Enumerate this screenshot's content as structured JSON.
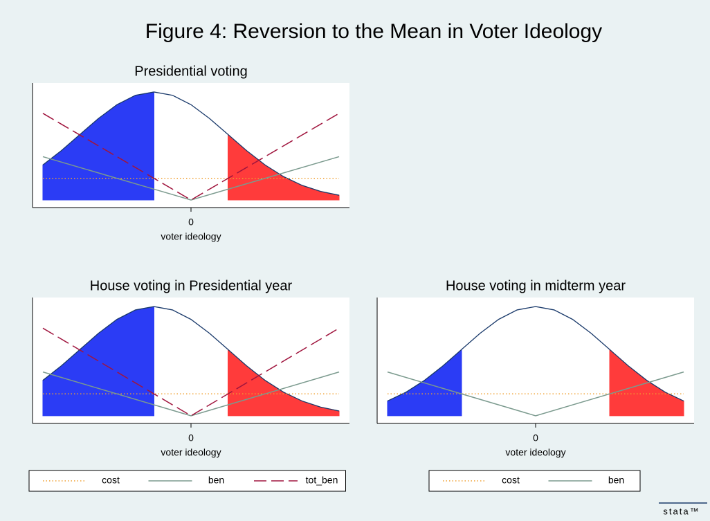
{
  "title": "Figure 4: Reversion to the Mean in Voter Ideology",
  "watermark": "stata™",
  "chart_data": [
    {
      "type": "line",
      "title": "Presidential voting",
      "xlabel": "voter ideology",
      "xlim": [
        -2.14,
        2.14
      ],
      "xticks": [
        0
      ],
      "ylim": [
        -0.028,
        0.432
      ],
      "legend": false,
      "density": {
        "color": "#1a3a6b",
        "x": [
          -2,
          -1.75,
          -1.5,
          -1.25,
          -1,
          -0.75,
          -0.5,
          -0.25,
          0,
          0.25,
          0.5,
          0.75,
          1,
          1.25,
          1.5,
          1.75,
          2
        ],
        "values": [
          0.1295,
          0.1826,
          0.242,
          0.3011,
          0.3521,
          0.3867,
          0.3989,
          0.3867,
          0.3521,
          0.3011,
          0.242,
          0.1826,
          0.1295,
          0.0863,
          0.054,
          0.0317,
          0.0175
        ]
      },
      "areas": [
        {
          "color": "#2b3cf5",
          "x": [
            -2,
            -1.75,
            -1.5,
            -1.25,
            -1,
            -0.75,
            -0.5
          ],
          "values": [
            0.1295,
            0.1826,
            0.242,
            0.3011,
            0.3521,
            0.3867,
            0.3989
          ]
        },
        {
          "color": "#ff3b3b",
          "x": [
            0.5,
            0.75,
            1,
            1.25,
            1.5,
            1.75,
            2
          ],
          "values": [
            0.242,
            0.1826,
            0.1295,
            0.0863,
            0.054,
            0.0317,
            0.0175
          ]
        }
      ],
      "series": [
        {
          "name": "cost",
          "color": "#f0a030",
          "style": "dot",
          "x": [
            -2,
            2
          ],
          "values": [
            0.08,
            0.08
          ]
        },
        {
          "name": "ben",
          "color": "#7b9a8e",
          "style": "solid",
          "x": [
            -2,
            0,
            2
          ],
          "values": [
            0.16,
            0,
            0.16
          ]
        },
        {
          "name": "tot_ben",
          "color": "#a0153e",
          "style": "dash",
          "x": [
            -2,
            0,
            2
          ],
          "values": [
            0.32,
            0,
            0.32
          ]
        }
      ]
    },
    {
      "type": "line",
      "title": "House voting in Presidential year",
      "xlabel": "voter ideology",
      "xlim": [
        -2.14,
        2.14
      ],
      "xticks": [
        0
      ],
      "ylim": [
        -0.028,
        0.432
      ],
      "legend": true,
      "density": {
        "color": "#1a3a6b",
        "x": [
          -2,
          -1.75,
          -1.5,
          -1.25,
          -1,
          -0.75,
          -0.5,
          -0.25,
          0,
          0.25,
          0.5,
          0.75,
          1,
          1.25,
          1.5,
          1.75,
          2
        ],
        "values": [
          0.1295,
          0.1826,
          0.242,
          0.3011,
          0.3521,
          0.3867,
          0.3989,
          0.3867,
          0.3521,
          0.3011,
          0.242,
          0.1826,
          0.1295,
          0.0863,
          0.054,
          0.0317,
          0.0175
        ]
      },
      "areas": [
        {
          "color": "#2b3cf5",
          "x": [
            -2,
            -1.75,
            -1.5,
            -1.25,
            -1,
            -0.75,
            -0.5
          ],
          "values": [
            0.1295,
            0.1826,
            0.242,
            0.3011,
            0.3521,
            0.3867,
            0.3989
          ]
        },
        {
          "color": "#ff3b3b",
          "x": [
            0.5,
            0.75,
            1,
            1.25,
            1.5,
            1.75,
            2
          ],
          "values": [
            0.242,
            0.1826,
            0.1295,
            0.0863,
            0.054,
            0.0317,
            0.0175
          ]
        }
      ],
      "series": [
        {
          "name": "cost",
          "color": "#f0a030",
          "style": "dot",
          "x": [
            -2,
            2
          ],
          "values": [
            0.08,
            0.08
          ]
        },
        {
          "name": "ben",
          "color": "#7b9a8e",
          "style": "solid",
          "x": [
            -2,
            0,
            2
          ],
          "values": [
            0.16,
            0,
            0.16
          ]
        },
        {
          "name": "tot_ben",
          "color": "#a0153e",
          "style": "dash",
          "x": [
            -2,
            0,
            2
          ],
          "values": [
            0.32,
            0,
            0.32
          ]
        }
      ]
    },
    {
      "type": "line",
      "title": "House voting in midterm year",
      "xlabel": "voter ideology",
      "xlim": [
        -2.14,
        2.14
      ],
      "xticks": [
        0
      ],
      "ylim": [
        -0.028,
        0.432
      ],
      "legend": true,
      "density": {
        "color": "#1a3a6b",
        "x": [
          -2,
          -1.75,
          -1.5,
          -1.25,
          -1,
          -0.75,
          -0.5,
          -0.25,
          0,
          0.25,
          0.5,
          0.75,
          1,
          1.25,
          1.5,
          1.75,
          2
        ],
        "values": [
          0.054,
          0.0863,
          0.1295,
          0.1826,
          0.242,
          0.3011,
          0.3521,
          0.3867,
          0.3989,
          0.3867,
          0.3521,
          0.3011,
          0.242,
          0.1826,
          0.1295,
          0.0863,
          0.054
        ]
      },
      "areas": [
        {
          "color": "#2b3cf5",
          "x": [
            -2,
            -1.75,
            -1.5,
            -1.25,
            -1
          ],
          "values": [
            0.054,
            0.0863,
            0.1295,
            0.1826,
            0.242
          ]
        },
        {
          "color": "#ff3b3b",
          "x": [
            1,
            1.25,
            1.5,
            1.75,
            2
          ],
          "values": [
            0.242,
            0.1826,
            0.1295,
            0.0863,
            0.054
          ]
        }
      ],
      "series": [
        {
          "name": "cost",
          "color": "#f0a030",
          "style": "dot",
          "x": [
            -2,
            2
          ],
          "values": [
            0.08,
            0.08
          ]
        },
        {
          "name": "ben",
          "color": "#7b9a8e",
          "style": "solid",
          "x": [
            -2,
            0,
            2
          ],
          "values": [
            0.16,
            0,
            0.16
          ]
        }
      ]
    }
  ]
}
